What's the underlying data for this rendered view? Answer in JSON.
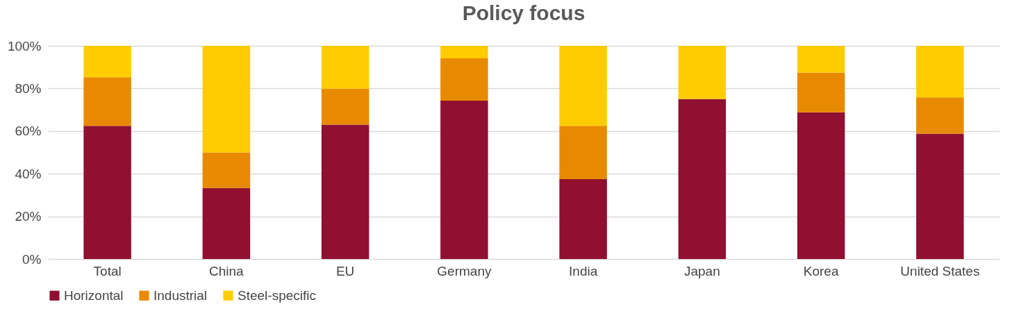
{
  "chart_data": {
    "type": "bar",
    "title": "Policy focus",
    "stacked": true,
    "categories": [
      "Total",
      "China",
      "EU",
      "Germany",
      "India",
      "Japan",
      "Korea",
      "United States"
    ],
    "series": [
      {
        "name": "Horizontal",
        "color": "#8f1030",
        "values": [
          62.5,
          33.3,
          63.0,
          74.3,
          37.5,
          75.0,
          68.8,
          58.8
        ]
      },
      {
        "name": "Industrial",
        "color": "#e88a00",
        "values": [
          22.8,
          16.7,
          16.9,
          19.8,
          25.0,
          0,
          18.7,
          17.0
        ]
      },
      {
        "name": "Steel-specific",
        "color": "#ffcc00",
        "values": [
          14.7,
          50.0,
          20.1,
          5.9,
          37.5,
          25.0,
          12.5,
          24.2
        ]
      }
    ],
    "ylim": [
      0,
      100
    ],
    "yticks": [
      {
        "value": 0,
        "label": "0%"
      },
      {
        "value": 20,
        "label": "20%"
      },
      {
        "value": 40,
        "label": "40%"
      },
      {
        "value": 60,
        "label": "60%"
      },
      {
        "value": 80,
        "label": "80%"
      },
      {
        "value": 100,
        "label": "100%"
      }
    ],
    "grid": "y",
    "legend": "bottom"
  }
}
